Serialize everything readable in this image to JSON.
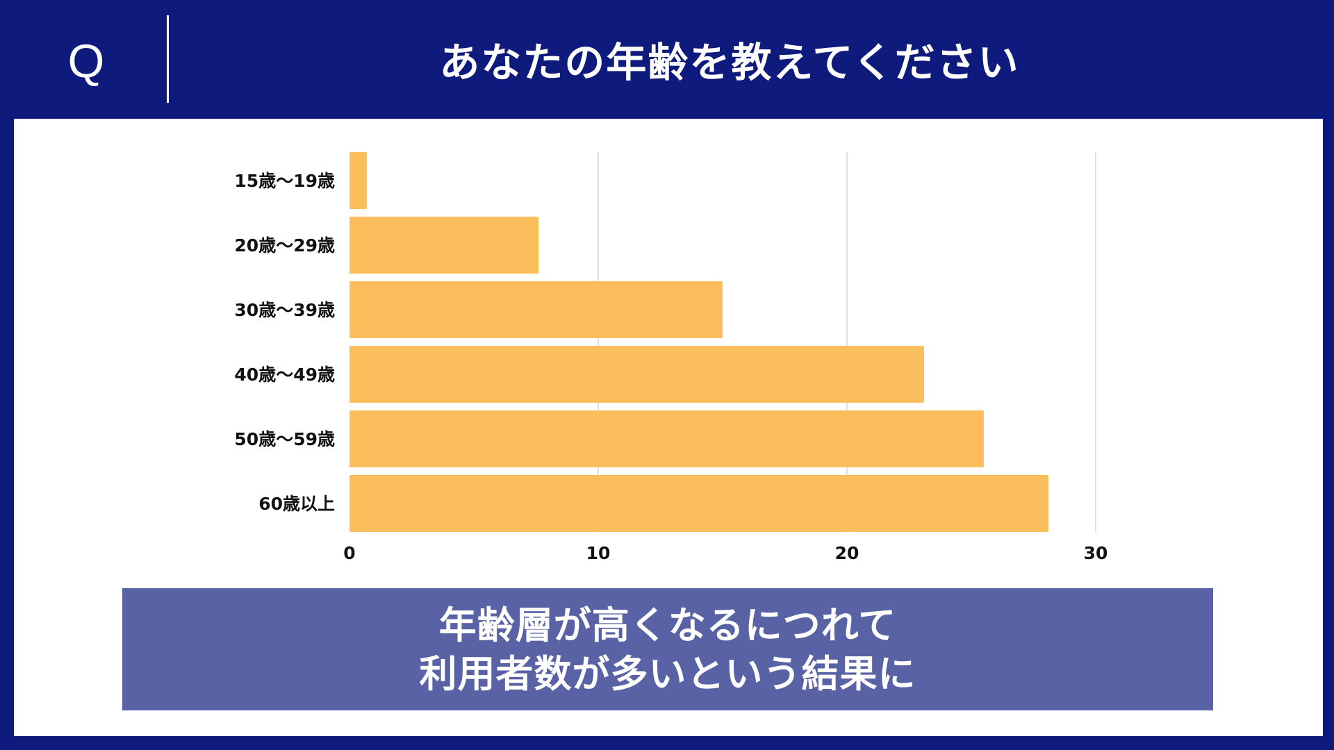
{
  "header": {
    "q_label": "Q",
    "question": "あなたの年齢を教えてください"
  },
  "colors": {
    "background": "#0e1a7c",
    "panel": "#ffffff",
    "bar": "#fcbd5c",
    "gridline": "#d6d6d6",
    "summary_box": "#5a62a6",
    "summary_text": "#ffffff"
  },
  "chart_data": {
    "type": "bar",
    "orientation": "horizontal",
    "categories": [
      "15歳〜19歳",
      "20歳〜29歳",
      "30歳〜39歳",
      "40歳〜49歳",
      "50歳〜59歳",
      "60歳以上"
    ],
    "values": [
      0.7,
      7.6,
      15,
      23.1,
      25.5,
      28.1
    ],
    "xlim": [
      0,
      35
    ],
    "xticks": [
      0,
      10,
      20,
      30
    ],
    "grid": true,
    "legend": "none",
    "title": "",
    "xlabel": "",
    "ylabel": ""
  },
  "summary": {
    "line1": "年齢層が高くなるにつれて",
    "line2": "利用者数が多いという結果に"
  }
}
